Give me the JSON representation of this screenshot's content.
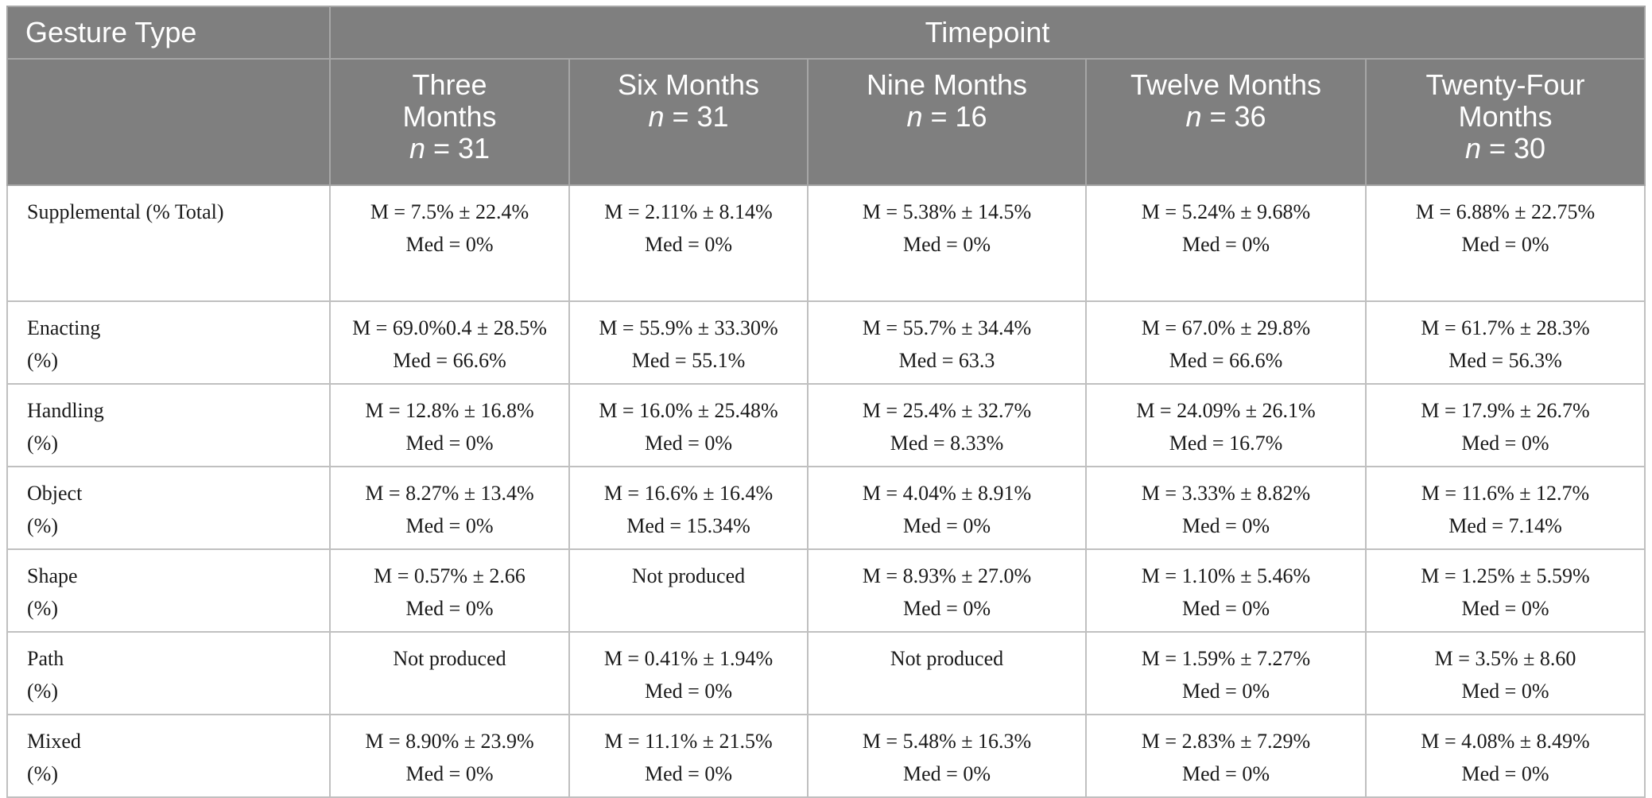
{
  "header": {
    "gesture_type": "Gesture Type",
    "timepoint": "Timepoint",
    "columns": [
      {
        "line1": "Three",
        "line2": "Months",
        "n_label": "n",
        "n_value": " = 31"
      },
      {
        "line1": "Six Months",
        "line2": "",
        "n_label": "n",
        "n_value": " = 31"
      },
      {
        "line1": "Nine Months",
        "line2": "",
        "n_label": "n",
        "n_value": " = 16"
      },
      {
        "line1": "Twelve Months",
        "line2": "",
        "n_label": "n",
        "n_value": " = 36"
      },
      {
        "line1": "Twenty-Four",
        "line2": "Months",
        "n_label": "n",
        "n_value": " = 30"
      }
    ]
  },
  "rows": [
    {
      "label1": "Supplemental (% Total)",
      "label2": "",
      "cells": [
        {
          "m": "M = 7.5% ± 22.4%",
          "med": "Med = 0%"
        },
        {
          "m": "M = 2.11% ± 8.14%",
          "med": "Med = 0%"
        },
        {
          "m": "M = 5.38% ± 14.5%",
          "med": "Med = 0%"
        },
        {
          "m": "M = 5.24% ± 9.68%",
          "med": "Med = 0%"
        },
        {
          "m": "M = 6.88% ± 22.75%",
          "med": "Med = 0%"
        }
      ]
    },
    {
      "label1": "Enacting",
      "label2": "(%)",
      "cells": [
        {
          "m": "M = 69.0%0.4 ± 28.5%",
          "med": "Med = 66.6%"
        },
        {
          "m": "M = 55.9% ± 33.30%",
          "med": "Med = 55.1%"
        },
        {
          "m": "M = 55.7% ± 34.4%",
          "med": "Med = 63.3"
        },
        {
          "m": "M = 67.0% ± 29.8%",
          "med": "Med = 66.6%"
        },
        {
          "m": "M = 61.7% ± 28.3%",
          "med": "Med = 56.3%"
        }
      ]
    },
    {
      "label1": "Handling",
      "label2": "(%)",
      "cells": [
        {
          "m": "M = 12.8% ± 16.8%",
          "med": "Med = 0%"
        },
        {
          "m": "M = 16.0% ± 25.48%",
          "med": "Med = 0%"
        },
        {
          "m": "M = 25.4% ± 32.7%",
          "med": "Med = 8.33%"
        },
        {
          "m": "M = 24.09% ± 26.1%",
          "med": "Med = 16.7%"
        },
        {
          "m": "M = 17.9% ± 26.7%",
          "med": "Med = 0%"
        }
      ]
    },
    {
      "label1": "Object",
      "label2": "(%)",
      "cells": [
        {
          "m": "M = 8.27% ± 13.4%",
          "med": "Med = 0%"
        },
        {
          "m": "M = 16.6% ± 16.4%",
          "med": "Med = 15.34%"
        },
        {
          "m": "M = 4.04% ± 8.91%",
          "med": "Med = 0%"
        },
        {
          "m": "M = 3.33% ± 8.82%",
          "med": "Med = 0%"
        },
        {
          "m": "M = 11.6% ± 12.7%",
          "med": "Med = 7.14%"
        }
      ]
    },
    {
      "label1": "Shape",
      "label2": "(%)",
      "cells": [
        {
          "m": "M = 0.57% ± 2.66",
          "med": "Med = 0%"
        },
        {
          "m": "Not produced",
          "med": ""
        },
        {
          "m": "M = 8.93% ± 27.0%",
          "med": "Med = 0%"
        },
        {
          "m": "M = 1.10% ± 5.46%",
          "med": "Med = 0%"
        },
        {
          "m": "M = 1.25% ± 5.59%",
          "med": "Med = 0%"
        }
      ]
    },
    {
      "label1": "Path",
      "label2": "(%)",
      "cells": [
        {
          "m": "Not produced",
          "med": ""
        },
        {
          "m": "M = 0.41% ± 1.94%",
          "med": "Med = 0%"
        },
        {
          "m": "Not produced",
          "med": ""
        },
        {
          "m": "M = 1.59% ± 7.27%",
          "med": "Med = 0%"
        },
        {
          "m": "M = 3.5% ± 8.60",
          "med": "Med = 0%"
        }
      ]
    },
    {
      "label1": "Mixed",
      "label2": "(%)",
      "cells": [
        {
          "m": "M = 8.90% ± 23.9%",
          "med": "Med = 0%"
        },
        {
          "m": "M = 11.1% ± 21.5%",
          "med": "Med = 0%"
        },
        {
          "m": "M = 5.48% ± 16.3%",
          "med": "Med = 0%"
        },
        {
          "m": "M = 2.83% ± 7.29%",
          "med": "Med = 0%"
        },
        {
          "m": "M = 4.08% ± 8.49%",
          "med": "Med = 0%"
        }
      ]
    }
  ]
}
